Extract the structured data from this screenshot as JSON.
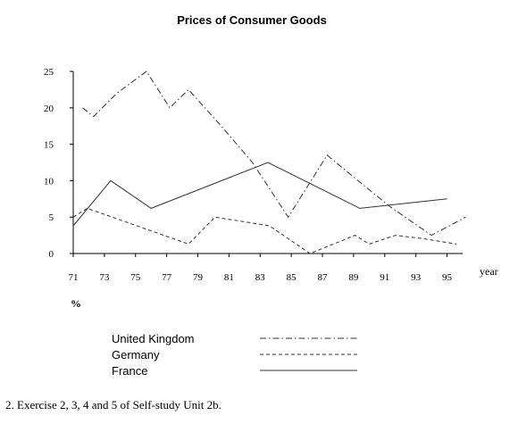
{
  "chart_data": {
    "type": "line",
    "title": "Prices of Consumer Goods",
    "xlabel": "year",
    "ylabel": "%",
    "xlim": [
      71,
      96
    ],
    "ylim": [
      0,
      25
    ],
    "x_ticks": [
      "71",
      "73",
      "75",
      "77",
      "79",
      "81",
      "83",
      "85",
      "87",
      "89",
      "91",
      "93",
      "95"
    ],
    "y_ticks": [
      "0",
      "5",
      "10",
      "15",
      "20",
      "25"
    ],
    "grid": false,
    "legend_position": "bottom",
    "series": [
      {
        "name": "United Kingdom",
        "style": "dash-dot",
        "color": "#333333",
        "points": [
          [
            71.6,
            20
          ],
          [
            72.3,
            18.8
          ],
          [
            73.8,
            22
          ],
          [
            75.7,
            25
          ],
          [
            77.2,
            20
          ],
          [
            78.4,
            22.5
          ],
          [
            80.5,
            17.5
          ],
          [
            82.5,
            12.5
          ],
          [
            84.8,
            5
          ],
          [
            87.3,
            13.5
          ],
          [
            89,
            10.5
          ],
          [
            91.3,
            6.5
          ],
          [
            94,
            2.5
          ],
          [
            96.2,
            5
          ]
        ]
      },
      {
        "name": "Germany",
        "style": "dashed",
        "color": "#333333",
        "points": [
          [
            71,
            5
          ],
          [
            71.9,
            6.2
          ],
          [
            73.5,
            5
          ],
          [
            78.4,
            1.3
          ],
          [
            80.1,
            5
          ],
          [
            83.6,
            3.8
          ],
          [
            86.2,
            0
          ],
          [
            89.1,
            2.5
          ],
          [
            90,
            1.3
          ],
          [
            91.7,
            2.5
          ],
          [
            93.6,
            2
          ],
          [
            95.6,
            1.3
          ]
        ]
      },
      {
        "name": "France",
        "style": "solid",
        "color": "#333333",
        "points": [
          [
            71,
            3.8
          ],
          [
            73.4,
            10
          ],
          [
            76,
            6.2
          ],
          [
            83.5,
            12.5
          ],
          [
            89.4,
            6.2
          ],
          [
            95,
            7.5
          ]
        ]
      }
    ]
  },
  "footnote": "2. Exercise 2, 3, 4 and 5 of Self-study Unit 2b."
}
